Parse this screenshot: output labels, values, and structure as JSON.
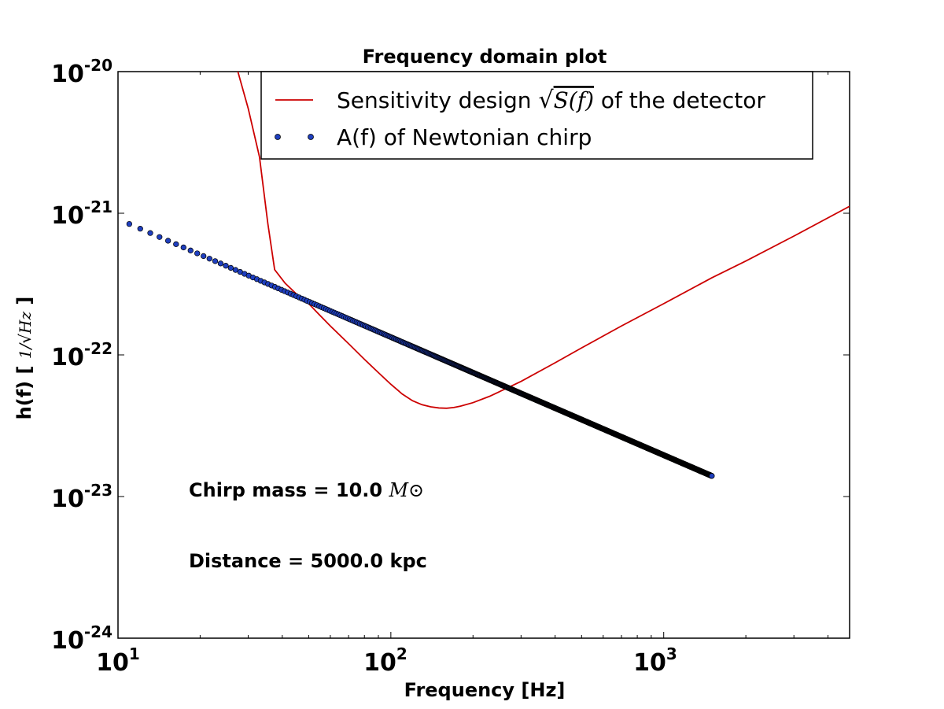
{
  "chart_data": {
    "type": "line",
    "title": "Frequency domain plot",
    "xlabel": "Frequency [Hz]",
    "ylabel_prefix": "h(f) [ ",
    "ylabel_unit": "1/√Hz",
    "ylabel_suffix": " ]",
    "x_scale": "log",
    "y_scale": "log",
    "xlim": [
      10,
      4800
    ],
    "ylim": [
      1e-24,
      1e-20
    ],
    "x_ticks": [
      {
        "base": "10",
        "exp": "1",
        "value": 10
      },
      {
        "base": "10",
        "exp": "2",
        "value": 100
      },
      {
        "base": "10",
        "exp": "3",
        "value": 1000
      }
    ],
    "y_ticks": [
      {
        "base": "10",
        "exp": "-24",
        "value": 1e-24
      },
      {
        "base": "10",
        "exp": "-23",
        "value": 1e-23
      },
      {
        "base": "10",
        "exp": "-22",
        "value": 1e-22
      },
      {
        "base": "10",
        "exp": "-21",
        "value": 1e-21
      },
      {
        "base": "10",
        "exp": "-20",
        "value": 1e-20
      }
    ],
    "legend": {
      "location": "top-right",
      "entries": [
        {
          "prefix": "Sensitivity design ",
          "math": "S(f)",
          "suffix": " of the detector",
          "marker": "line",
          "color": "#cc0000"
        },
        {
          "prefix": "A(f) of Newtonian chirp",
          "math": "",
          "suffix": "",
          "marker": "dots",
          "color": "#1f3fbf"
        }
      ]
    },
    "series": [
      {
        "name": "Sensitivity design √S(f) of the detector",
        "color": "#cc0000",
        "x": [
          27.5,
          30,
          33,
          35.4,
          37.5,
          41,
          45,
          50,
          55,
          60,
          70,
          80,
          90,
          100,
          110,
          120,
          130,
          140,
          150,
          160,
          170,
          180,
          200,
          230,
          260,
          300,
          400,
          500,
          700,
          1000,
          1500,
          2000,
          3000,
          4800
        ],
        "y": [
          1e-20,
          5.5e-21,
          2.5e-21,
          8.5e-22,
          4e-22,
          3.2e-22,
          2.7e-22,
          2.3e-22,
          1.9e-22,
          1.6e-22,
          1.2e-22,
          9.3e-23,
          7.5e-23,
          6.2e-23,
          5.3e-23,
          4.75e-23,
          4.45e-23,
          4.3e-23,
          4.22e-23,
          4.2e-23,
          4.25e-23,
          4.35e-23,
          4.6e-23,
          5.1e-23,
          5.7e-23,
          6.5e-23,
          8.8e-23,
          1.12e-22,
          1.6e-22,
          2.3e-22,
          3.5e-22,
          4.6e-22,
          6.9e-22,
          1.12e-21
        ]
      },
      {
        "name": "A(f) of Newtonian chirp",
        "color": "#1f3fbf",
        "f_min": 11,
        "f_max": 1500,
        "a_at_11": 8.4e-22,
        "power_law_exponent": -0.8333,
        "point_count": 1400
      }
    ],
    "annotations": [
      {
        "text": "Chirp mass = 10.0 ",
        "math": "M⊙"
      },
      {
        "text": "Distance = 5000.0 kpc",
        "math": ""
      }
    ]
  }
}
